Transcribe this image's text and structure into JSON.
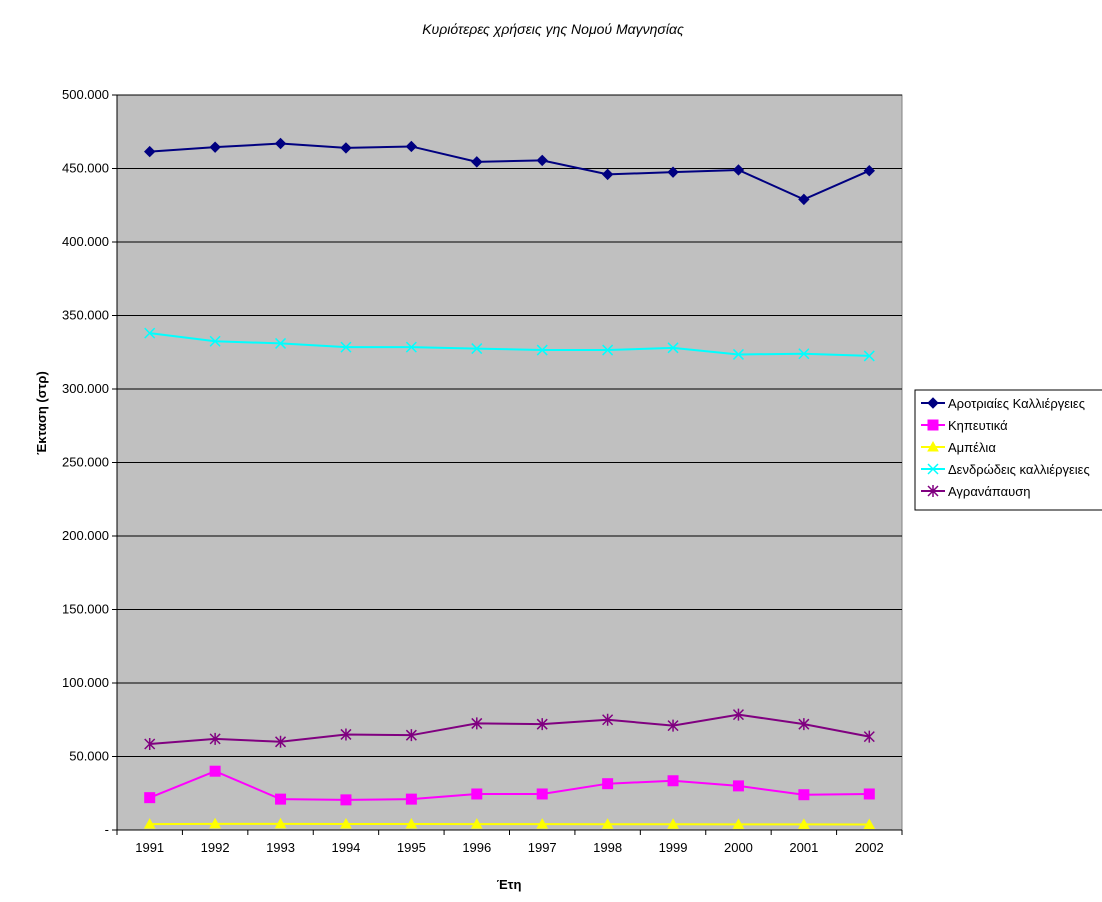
{
  "chart_data": {
    "type": "line",
    "title": "Κυριότερες χρήσεις γης Νομού Μαγνησίας",
    "xlabel": "Έτη",
    "ylabel": "Έκταση (στρ)",
    "categories": [
      "1991",
      "1992",
      "1993",
      "1994",
      "1995",
      "1996",
      "1997",
      "1998",
      "1999",
      "2000",
      "2001",
      "2002"
    ],
    "ylim": [
      0,
      500000
    ],
    "yticks": [
      0,
      50000,
      100000,
      150000,
      200000,
      250000,
      300000,
      350000,
      400000,
      450000,
      500000
    ],
    "ytick_labels": [
      "-",
      "50.000",
      "100.000",
      "150.000",
      "200.000",
      "250.000",
      "300.000",
      "350.000",
      "400.000",
      "450.000",
      "500.000"
    ],
    "grid": "horizontal major gridlines",
    "plot_background": "#c0c0c0",
    "legend_position": "right",
    "series": [
      {
        "name": "Αροτριαίες Καλλιέργειες",
        "color": "#000080",
        "marker": "diamond",
        "values": [
          461500,
          464500,
          467000,
          464000,
          465000,
          454500,
          455500,
          446000,
          447500,
          449000,
          429000,
          448500
        ]
      },
      {
        "name": "Κηπευτικά",
        "color": "#ff00ff",
        "marker": "square",
        "values": [
          22000,
          40000,
          21000,
          20500,
          21000,
          24500,
          24500,
          31500,
          33500,
          30000,
          24000,
          24500
        ]
      },
      {
        "name": "Αμπέλια",
        "color": "#ffff00",
        "marker": "triangle",
        "values": [
          4000,
          4200,
          4200,
          4100,
          4100,
          4000,
          4000,
          3900,
          3900,
          3800,
          3800,
          3700
        ]
      },
      {
        "name": "Δενδρώδεις καλλιέργειες",
        "color": "#00ffff",
        "marker": "x",
        "values": [
          338000,
          332500,
          331000,
          328500,
          328500,
          327500,
          326500,
          326500,
          328000,
          323500,
          324000,
          322500
        ]
      },
      {
        "name": "Αγρανάπαυση",
        "color": "#800080",
        "marker": "star",
        "values": [
          58500,
          62000,
          60000,
          65000,
          64500,
          72500,
          72000,
          75000,
          71000,
          78500,
          72000,
          63500
        ]
      }
    ]
  }
}
